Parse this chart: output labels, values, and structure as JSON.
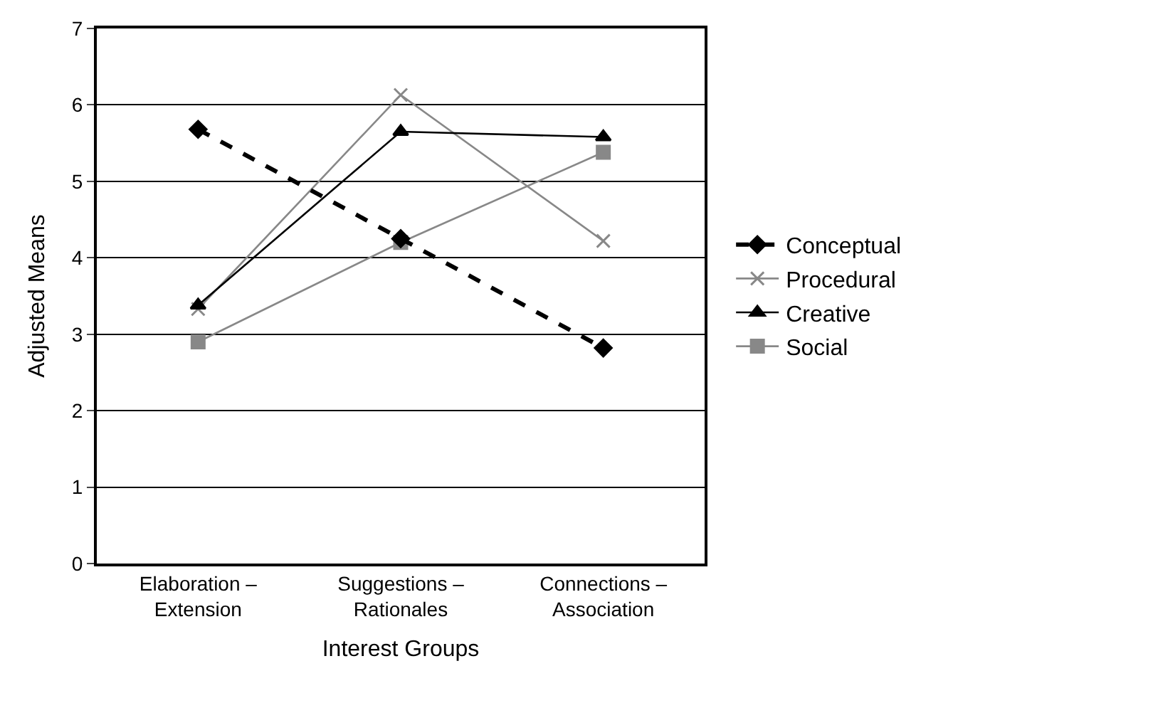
{
  "chart_data": {
    "type": "line",
    "xlabel": "Interest Groups",
    "ylabel": "Adjusted Means",
    "categories": [
      "Elaboration –\nExtension",
      "Suggestions –\nRationales",
      "Connections –\nAssociation"
    ],
    "series": [
      {
        "name": "Conceptual",
        "color": "#000000",
        "values": [
          5.68,
          4.25,
          2.82
        ],
        "marker": "diamond",
        "line_style": "dashed"
      },
      {
        "name": "Procedural",
        "color": "#888888",
        "values": [
          3.33,
          6.13,
          4.22
        ],
        "marker": "cross",
        "line_style": "solid"
      },
      {
        "name": "Creative",
        "color": "#000000",
        "values": [
          3.38,
          5.65,
          5.58
        ],
        "marker": "triangle",
        "line_style": "solid"
      },
      {
        "name": "Social",
        "color": "#888888",
        "values": [
          2.9,
          4.2,
          5.38
        ],
        "marker": "square",
        "line_style": "solid"
      }
    ],
    "ylim": [
      0,
      7
    ],
    "yticks": [
      0,
      1,
      2,
      3,
      4,
      5,
      6,
      7
    ],
    "grid": "y",
    "legend": "right"
  }
}
